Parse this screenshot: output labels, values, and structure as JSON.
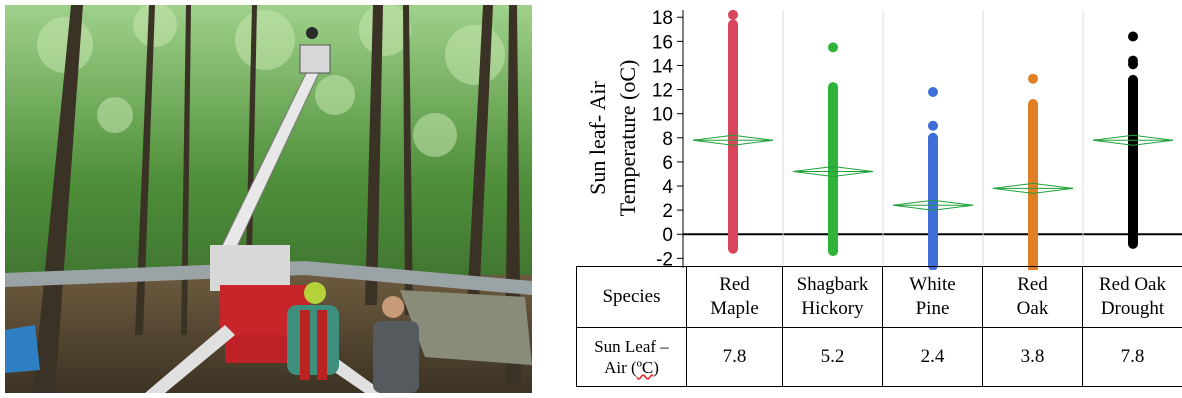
{
  "chart_data": {
    "type": "scatter",
    "ylabel_line1": "Sun leaf- Air",
    "ylabel_line2": "Temperature (oC)",
    "ylim": [
      -2.8,
      18.6
    ],
    "yticks": [
      18,
      16,
      14,
      12,
      10,
      8,
      6,
      4,
      2,
      0,
      -2
    ],
    "reference_line": 0,
    "categories": [
      "Red Maple",
      "Shagbark Hickory",
      "White Pine",
      "Red Oak",
      "Red Oak Drought"
    ],
    "colors": [
      "#d9465c",
      "#2fb33a",
      "#3f6ed8",
      "#e07f24",
      "#000000"
    ],
    "means": [
      7.8,
      5.2,
      2.4,
      3.8,
      7.8
    ],
    "ranges": [
      [
        -1.2,
        17.4
      ],
      [
        -1.4,
        12.2
      ],
      [
        -2.6,
        8.0
      ],
      [
        -2.8,
        10.8
      ],
      [
        -0.8,
        12.8
      ]
    ],
    "outliers": [
      [
        18.2
      ],
      [
        15.5
      ],
      [
        9.0,
        11.8
      ],
      [
        12.9
      ],
      [
        14.1,
        14.4,
        16.4
      ]
    ]
  },
  "table": {
    "species_label": "Species",
    "species": [
      [
        "Red",
        "Maple"
      ],
      [
        "Shagbark",
        "Hickory"
      ],
      [
        "White",
        "Pine"
      ],
      [
        "Red",
        "Oak"
      ],
      [
        "Red Oak",
        "Drought"
      ]
    ],
    "value_label_line1": "Sun Leaf –",
    "value_label_line2_a": "Air (",
    "value_label_unit": "ºC",
    "value_label_line2_b": ")",
    "values": [
      "7.8",
      "5.2",
      "2.4",
      "3.8",
      "7.8"
    ]
  }
}
